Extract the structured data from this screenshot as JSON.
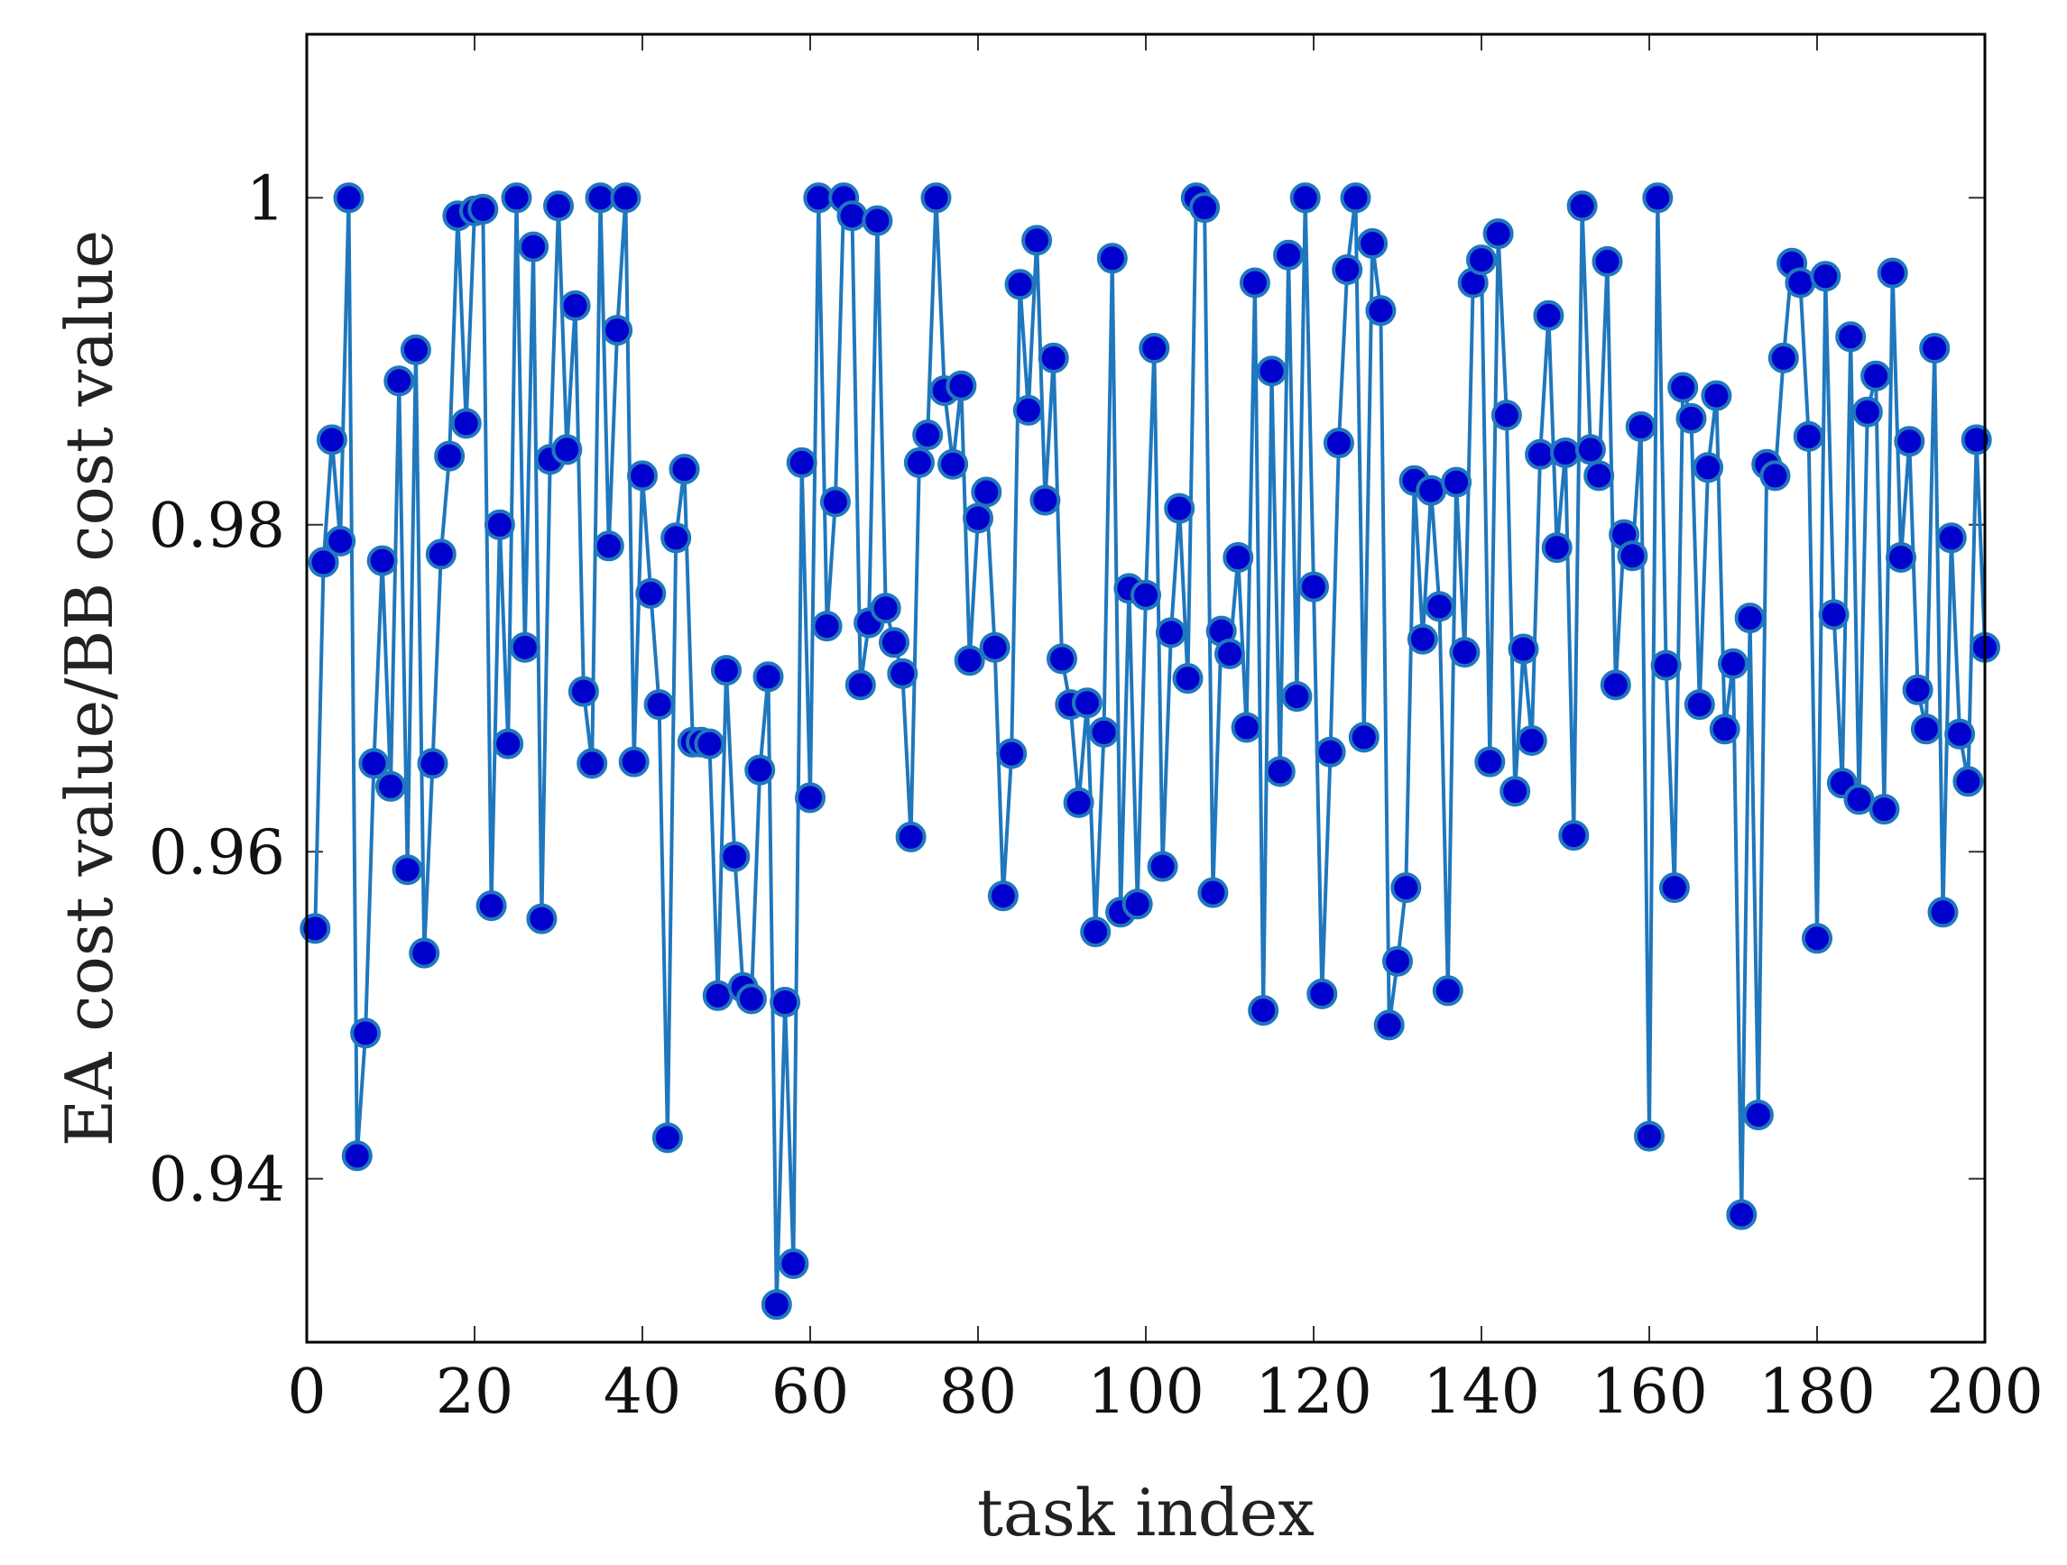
{
  "chart_data": {
    "type": "line",
    "title": "",
    "xlabel": "task index",
    "ylabel": "EA cost value/BB cost value",
    "xlim": [
      0,
      200
    ],
    "ylim": [
      0.93,
      1.01
    ],
    "grid": false,
    "legend": "none",
    "colors": {
      "line": "#1f77bd",
      "marker_fill": "#0000cc",
      "marker_stroke": "#1f77bd",
      "frame": "#000000"
    },
    "x_ticks": [
      {
        "value": 0,
        "label": "0"
      },
      {
        "value": 20,
        "label": "20"
      },
      {
        "value": 40,
        "label": "40"
      },
      {
        "value": 60,
        "label": "60"
      },
      {
        "value": 80,
        "label": "80"
      },
      {
        "value": 100,
        "label": "100"
      },
      {
        "value": 120,
        "label": "120"
      },
      {
        "value": 140,
        "label": "140"
      },
      {
        "value": 160,
        "label": "160"
      },
      {
        "value": 180,
        "label": "180"
      },
      {
        "value": 200,
        "label": "200"
      }
    ],
    "y_ticks": [
      {
        "value": 0.94,
        "label": "0.94"
      },
      {
        "value": 0.96,
        "label": "0.96"
      },
      {
        "value": 0.98,
        "label": "0.98"
      },
      {
        "value": 1.0,
        "label": "1"
      }
    ],
    "series": [
      {
        "x": [
          1,
          2,
          3,
          4,
          5,
          6,
          7,
          8,
          9,
          10,
          11,
          12,
          13,
          14,
          15,
          16,
          17,
          18,
          19,
          20,
          21,
          22,
          23,
          24,
          25,
          26,
          27,
          28,
          29,
          30,
          31,
          32,
          33,
          34,
          35,
          36,
          37,
          38,
          39,
          40,
          41,
          42,
          43,
          44,
          45,
          46,
          47,
          48,
          49,
          50,
          51,
          52,
          53,
          54,
          55,
          56,
          57,
          58,
          59,
          60,
          61,
          62,
          63,
          64,
          65,
          66,
          67,
          68,
          69,
          70,
          71,
          72,
          73,
          74,
          75,
          76,
          77,
          78,
          79,
          80,
          81,
          82,
          83,
          84,
          85,
          86,
          87,
          88,
          89,
          90,
          91,
          92,
          93,
          94,
          95,
          96,
          97,
          98,
          99,
          100,
          101,
          102,
          103,
          104,
          105,
          106,
          107,
          108,
          109,
          110,
          111,
          112,
          113,
          114,
          115,
          116,
          117,
          118,
          119,
          120,
          121,
          122,
          123,
          124,
          125,
          126,
          127,
          128,
          129,
          130,
          131,
          132,
          133,
          134,
          135,
          136,
          137,
          138,
          139,
          140,
          141,
          142,
          143,
          144,
          145,
          146,
          147,
          148,
          149,
          150,
          151,
          152,
          153,
          154,
          155,
          156,
          157,
          158,
          159,
          160,
          161,
          162,
          163,
          164,
          165,
          166,
          167,
          168,
          169,
          170,
          171,
          172,
          173,
          174,
          175,
          176,
          177,
          178,
          179,
          180,
          181,
          182,
          183,
          184,
          185,
          186,
          187,
          188,
          189,
          190,
          191,
          192,
          193,
          194,
          195,
          196,
          197,
          198,
          199,
          200
        ],
        "y": [
          0.9553,
          0.9777,
          0.9852,
          0.979,
          1.0,
          0.9414,
          0.9489,
          0.9654,
          0.9778,
          0.964,
          0.9888,
          0.9589,
          0.9907,
          0.9538,
          0.9654,
          0.9782,
          0.9842,
          0.9989,
          0.9862,
          0.9992,
          0.9993,
          0.9567,
          0.98,
          0.9666,
          1.0,
          0.9725,
          0.997,
          0.9559,
          0.984,
          0.9995,
          0.9846,
          0.9934,
          0.9698,
          0.9654,
          1.0,
          0.9787,
          0.9919,
          1.0,
          0.9655,
          0.983,
          0.9758,
          0.969,
          0.9425,
          0.9792,
          0.9834,
          0.9667,
          0.9667,
          0.9666,
          0.9512,
          0.9711,
          0.9597,
          0.9517,
          0.951,
          0.965,
          0.9707,
          0.9323,
          0.9508,
          0.9348,
          0.9838,
          0.9633,
          1.0,
          0.9738,
          0.9814,
          1.0,
          0.9989,
          0.9702,
          0.974,
          0.9986,
          0.9749,
          0.9728,
          0.9709,
          0.9609,
          0.9838,
          0.9855,
          1.0,
          0.9882,
          0.9837,
          0.9885,
          0.9717,
          0.9804,
          0.982,
          0.9725,
          0.9573,
          0.966,
          0.9947,
          0.987,
          0.9974,
          0.9815,
          0.9902,
          0.9718,
          0.969,
          0.963,
          0.9691,
          0.9551,
          0.9673,
          0.9963,
          0.9563,
          0.9761,
          0.9568,
          0.9757,
          0.9908,
          0.9591,
          0.9734,
          0.981,
          0.9706,
          1.0,
          0.9994,
          0.9575,
          0.9735,
          0.9721,
          0.978,
          0.9676,
          0.9948,
          0.9503,
          0.9894,
          0.9649,
          0.9965,
          0.9695,
          1.0,
          0.9762,
          0.9513,
          0.9661,
          0.985,
          0.9956,
          1.0,
          0.967,
          0.9972,
          0.9931,
          0.9494,
          0.9533,
          0.9578,
          0.9827,
          0.973,
          0.9821,
          0.975,
          0.9515,
          0.9826,
          0.9722,
          0.9948,
          0.9962,
          0.9655,
          0.9978,
          0.9867,
          0.9637,
          0.9724,
          0.9668,
          0.9843,
          0.9928,
          0.9786,
          0.9844,
          0.961,
          0.9995,
          0.9846,
          0.983,
          0.9961,
          0.9702,
          0.9794,
          0.9781,
          0.986,
          0.9426,
          1.0,
          0.9714,
          0.9578,
          0.9884,
          0.9865,
          0.969,
          0.9835,
          0.9879,
          0.9675,
          0.9715,
          0.9378,
          0.9743,
          0.9439,
          0.9837,
          0.983,
          0.9902,
          0.996,
          0.9948,
          0.9854,
          0.9547,
          0.9952,
          0.9745,
          0.9642,
          0.9915,
          0.9632,
          0.9869,
          0.9891,
          0.9626,
          0.9954,
          0.978,
          0.9851,
          0.9699,
          0.9675,
          0.9908,
          0.9563,
          0.9792,
          0.9672,
          0.9643,
          0.9852,
          0.9725
        ]
      }
    ]
  }
}
